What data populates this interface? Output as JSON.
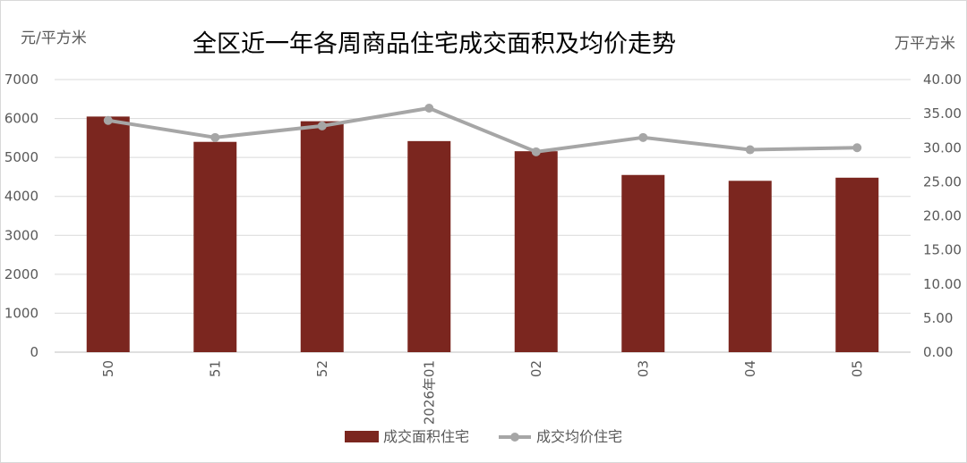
{
  "chart_data": {
    "type": "bar",
    "title": "全区近一年各周商品住宅成交面积及均价走势",
    "y_left_unit": "元/平方米",
    "y_right_unit": "万平方米",
    "categories": [
      "50",
      "51",
      "52",
      "2026年01",
      "02",
      "03",
      "04",
      "05"
    ],
    "y_left_ticks": [
      "0",
      "1000",
      "2000",
      "3000",
      "4000",
      "5000",
      "6000",
      "7000"
    ],
    "y_right_ticks": [
      "0.00",
      "5.00",
      "10.00",
      "15.00",
      "20.00",
      "25.00",
      "30.00",
      "35.00",
      "40.00"
    ],
    "y_left_lim": [
      0,
      7000
    ],
    "y_right_lim": [
      0,
      40
    ],
    "grid": true,
    "legend_position": "bottom",
    "series": [
      {
        "name": "成交面积住宅",
        "type": "bar",
        "axis": "left",
        "color": "#7b261f",
        "values": [
          6050,
          5400,
          5930,
          5420,
          5160,
          4550,
          4400,
          4480
        ]
      },
      {
        "name": "成交均价住宅",
        "type": "line",
        "axis": "right",
        "color": "#a6a6a6",
        "values": [
          34.0,
          31.5,
          33.2,
          35.8,
          29.4,
          31.5,
          29.7,
          30.0
        ]
      }
    ]
  }
}
